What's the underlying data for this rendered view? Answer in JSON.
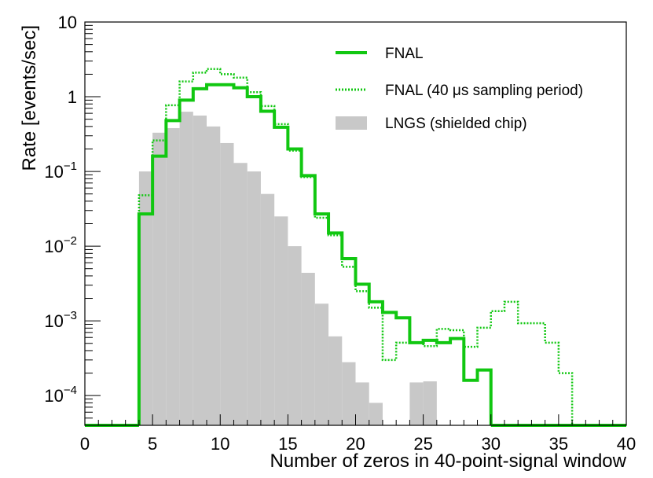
{
  "chart_data": {
    "type": "histogram",
    "xlabel": "Number of zeros in 40-point-signal window",
    "ylabel": "Rate [events/sec]",
    "xlim": [
      0,
      40
    ],
    "ylim": [
      4e-05,
      10
    ],
    "y_scale": "log",
    "x_ticks": [
      "0",
      "5",
      "10",
      "15",
      "20",
      "25",
      "30",
      "35",
      "40"
    ],
    "y_ticks": [
      {
        "value": 0.0001,
        "base": "10",
        "exp": "−4"
      },
      {
        "value": 0.001,
        "base": "10",
        "exp": "−3"
      },
      {
        "value": 0.01,
        "base": "10",
        "exp": "−2"
      },
      {
        "value": 0.1,
        "base": "10",
        "exp": "−1"
      },
      {
        "value": 1,
        "base": "1",
        "exp": ""
      },
      {
        "value": 10,
        "base": "10",
        "exp": ""
      }
    ],
    "legend_position": "top-right",
    "colors": {
      "fnal": "#11c711",
      "fnal_sampling": "#11c711",
      "lngs": "#c8c8c8"
    },
    "series": [
      {
        "name": "FNAL",
        "style": "solid-line",
        "bin_edges": [
          4,
          5,
          6,
          7,
          8,
          9,
          10,
          11,
          12,
          13,
          14,
          15,
          16,
          17,
          18,
          19,
          20,
          21,
          22,
          23,
          24,
          25,
          26,
          27,
          28,
          29,
          30
        ],
        "values": [
          0.027,
          0.16,
          0.48,
          0.9,
          1.28,
          1.45,
          1.45,
          1.32,
          1.0,
          0.64,
          0.39,
          0.2,
          0.088,
          0.027,
          0.015,
          0.0068,
          0.0031,
          0.0018,
          0.0013,
          0.0011,
          0.00051,
          0.00055,
          0.00051,
          0.00058,
          0.00016,
          0.00022
        ]
      },
      {
        "name": "FNAL (40 μs sampling period)",
        "style": "dotted-line",
        "bin_edges": [
          4,
          5,
          6,
          7,
          8,
          9,
          10,
          11,
          12,
          13,
          14,
          15,
          16,
          17,
          18,
          19,
          20,
          21,
          22,
          23,
          24,
          25,
          26,
          27,
          28,
          29,
          30,
          31,
          32,
          33,
          34,
          35,
          36
        ],
        "values": [
          0.048,
          0.26,
          0.77,
          1.6,
          2.1,
          2.35,
          2.0,
          1.8,
          1.15,
          0.75,
          0.43,
          0.19,
          0.084,
          0.024,
          0.014,
          0.0053,
          0.0025,
          0.0015,
          0.0003,
          0.00051,
          0.00051,
          0.00046,
          0.00078,
          0.00075,
          0.00045,
          0.00081,
          0.00135,
          0.0018,
          0.00093,
          0.00093,
          0.00051,
          0.0002
        ]
      },
      {
        "name": "LNGS (shielded chip)",
        "style": "filled",
        "bins": [
          {
            "x0": 4,
            "x1": 5,
            "value": 0.1
          },
          {
            "x0": 5,
            "x1": 6,
            "value": 0.33
          },
          {
            "x0": 6,
            "x1": 7,
            "value": 0.38
          },
          {
            "x0": 7,
            "x1": 8,
            "value": 0.63
          },
          {
            "x0": 8,
            "x1": 9,
            "value": 0.56
          },
          {
            "x0": 9,
            "x1": 10,
            "value": 0.4
          },
          {
            "x0": 10,
            "x1": 11,
            "value": 0.24
          },
          {
            "x0": 11,
            "x1": 12,
            "value": 0.13
          },
          {
            "x0": 12,
            "x1": 13,
            "value": 0.1
          },
          {
            "x0": 13,
            "x1": 14,
            "value": 0.05
          },
          {
            "x0": 14,
            "x1": 15,
            "value": 0.025
          },
          {
            "x0": 15,
            "x1": 16,
            "value": 0.01
          },
          {
            "x0": 16,
            "x1": 17,
            "value": 0.0044
          },
          {
            "x0": 17,
            "x1": 18,
            "value": 0.0017
          },
          {
            "x0": 18,
            "x1": 19,
            "value": 0.00062
          },
          {
            "x0": 19,
            "x1": 20,
            "value": 0.00028
          },
          {
            "x0": 20,
            "x1": 21,
            "value": 0.00015
          },
          {
            "x0": 21,
            "x1": 22,
            "value": 8e-05
          },
          {
            "x0": 24,
            "x1": 25,
            "value": 0.00015
          },
          {
            "x0": 25,
            "x1": 26,
            "value": 0.000155
          }
        ]
      }
    ]
  }
}
